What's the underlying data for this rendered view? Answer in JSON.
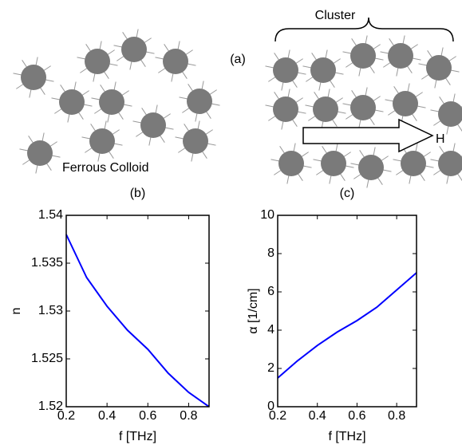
{
  "diagram": {
    "cluster_label": "Cluster",
    "panel_a": "(a)",
    "field_label": "H",
    "colloid_label": "Ferrous Colloid"
  },
  "chart_data": [
    {
      "type": "line",
      "title": "(b)",
      "xlabel": "f [THz]",
      "ylabel": "n",
      "x": [
        0.2,
        0.3,
        0.4,
        0.5,
        0.6,
        0.7,
        0.8,
        0.9
      ],
      "values": [
        1.538,
        1.5335,
        1.5305,
        1.528,
        1.526,
        1.5235,
        1.5215,
        1.52
      ],
      "color": "#0000ff",
      "xlim": [
        0.2,
        0.9
      ],
      "xticks": [
        0.2,
        0.4,
        0.6,
        0.8
      ],
      "ylim": [
        1.52,
        1.54
      ],
      "yticks": [
        1.52,
        1.525,
        1.53,
        1.535,
        1.54
      ]
    },
    {
      "type": "line",
      "title": "(c)",
      "xlabel": "f [THz]",
      "ylabel": "α [1/cm]",
      "x": [
        0.2,
        0.3,
        0.4,
        0.5,
        0.6,
        0.7,
        0.8,
        0.9
      ],
      "values": [
        1.5,
        2.4,
        3.2,
        3.9,
        4.5,
        5.2,
        6.1,
        7.0
      ],
      "color": "#0000ff",
      "xlim": [
        0.2,
        0.9
      ],
      "xticks": [
        0.2,
        0.4,
        0.6,
        0.8
      ],
      "ylim": [
        0,
        10
      ],
      "yticks": [
        0,
        2,
        4,
        6,
        8,
        10
      ]
    }
  ]
}
